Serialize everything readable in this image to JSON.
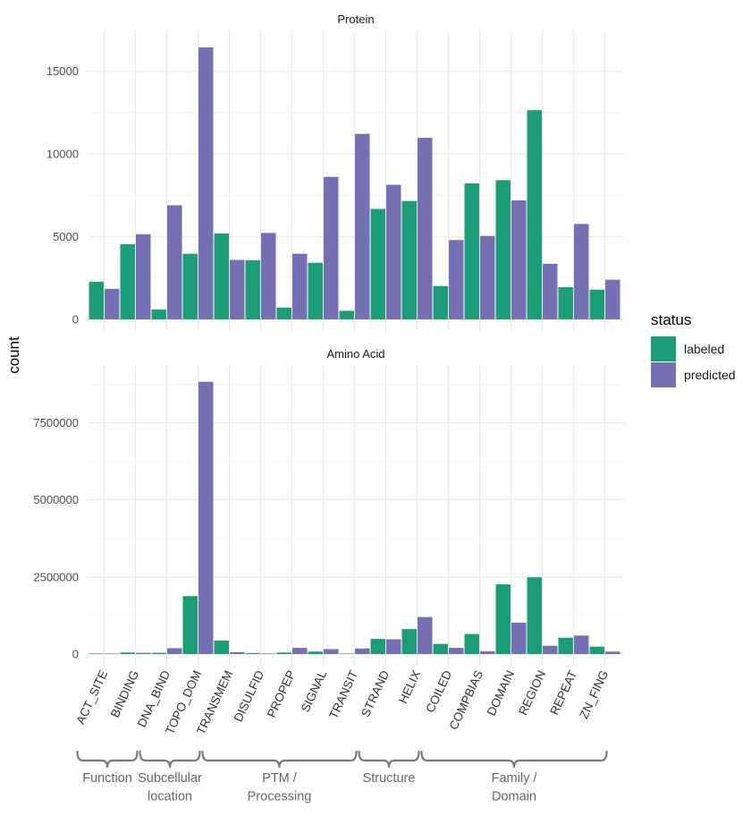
{
  "chart_data": {
    "type": "bar",
    "layout": "faceted grouped bar, two facets stacked vertically, free y scales",
    "ylabel": "count",
    "categories": [
      "ACT_SITE",
      "BINDING",
      "DNA_BIND",
      "TOPO_DOM",
      "TRANSMEM",
      "DISULFID",
      "PROPEP",
      "SIGNAL",
      "TRANSIT",
      "STRAND",
      "HELIX",
      "COILED",
      "COMPBIAS",
      "DOMAIN",
      "REGION",
      "REPEAT",
      "ZN_FING"
    ],
    "legend": {
      "title": "status",
      "placement": "right",
      "entries": [
        {
          "label": "labeled",
          "color": "#1b9e77"
        },
        {
          "label": "predicted",
          "color": "#7570b3"
        }
      ]
    },
    "facets": [
      {
        "title": "Protein",
        "ylim": [
          0,
          16500
        ],
        "yticks": [
          0,
          5000,
          10000,
          15000
        ],
        "ytick_labels": [
          "0",
          "5000",
          "10000",
          "15000"
        ],
        "series": [
          {
            "name": "labeled",
            "values": [
              2280,
              4550,
              600,
              3970,
              5200,
              3580,
              720,
              3420,
              520,
              6680,
              7160,
              2020,
              8220,
              8420,
              12650,
              1950,
              1800
            ]
          },
          {
            "name": "predicted",
            "values": [
              1850,
              5150,
              6900,
              16450,
              3600,
              5230,
              3970,
              8620,
              11220,
              8140,
              10980,
              4800,
              5050,
              7200,
              3360,
              5770,
              2400
            ]
          }
        ]
      },
      {
        "title": "Amino Acid",
        "ylim": [
          0,
          8850000
        ],
        "yticks": [
          0,
          2500000,
          5000000,
          7500000
        ],
        "ytick_labels": [
          "0",
          "2500000",
          "5000000",
          "7500000"
        ],
        "series": [
          {
            "name": "labeled",
            "values": [
              10000,
              50000,
              40000,
              1880000,
              440000,
              30000,
              50000,
              80000,
              10000,
              490000,
              810000,
              330000,
              650000,
              2260000,
              2490000,
              530000,
              240000
            ]
          },
          {
            "name": "predicted",
            "values": [
              15000,
              40000,
              190000,
              8830000,
              60000,
              20000,
              200000,
              160000,
              180000,
              480000,
              1200000,
              200000,
              90000,
              1020000,
              270000,
              600000,
              80000
            ]
          }
        ]
      }
    ],
    "groups": [
      {
        "lines": [
          "Function"
        ],
        "from": 0,
        "to": 1
      },
      {
        "lines": [
          "Subcellular",
          "location"
        ],
        "from": 2,
        "to": 3
      },
      {
        "lines": [
          "PTM /",
          "Processing"
        ],
        "from": 4,
        "to": 8
      },
      {
        "lines": [
          "Structure"
        ],
        "from": 9,
        "to": 10
      },
      {
        "lines": [
          "Family /",
          "Domain"
        ],
        "from": 11,
        "to": 16
      }
    ]
  }
}
